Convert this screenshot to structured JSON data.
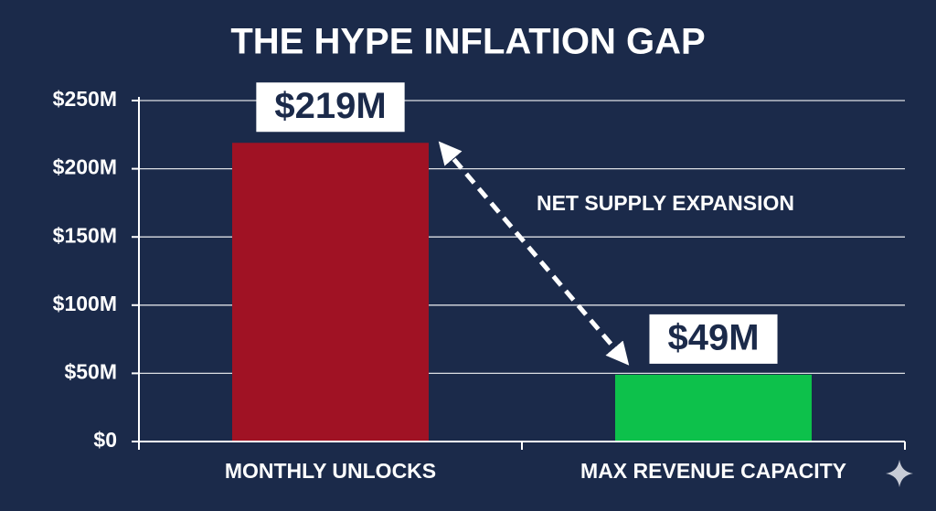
{
  "chart_data": {
    "type": "bar",
    "title": "THE HYPE INFLATION GAP",
    "categories": [
      "MONTHLY UNLOCKS",
      "MAX REVENUE CAPACITY"
    ],
    "values": [
      219,
      49
    ],
    "value_labels": [
      "$219M",
      "$49M"
    ],
    "colors": [
      "#a01224",
      "#0dc14b"
    ],
    "annotation": "NET SUPPLY EXPANSION",
    "ylim": [
      0,
      250
    ],
    "yticks": [
      {
        "value": 0,
        "label": "$0"
      },
      {
        "value": 50,
        "label": "$50M"
      },
      {
        "value": 100,
        "label": "$100M"
      },
      {
        "value": 150,
        "label": "$150M"
      },
      {
        "value": 200,
        "label": "$200M"
      },
      {
        "value": 250,
        "label": "$250M"
      }
    ],
    "grid": true
  }
}
